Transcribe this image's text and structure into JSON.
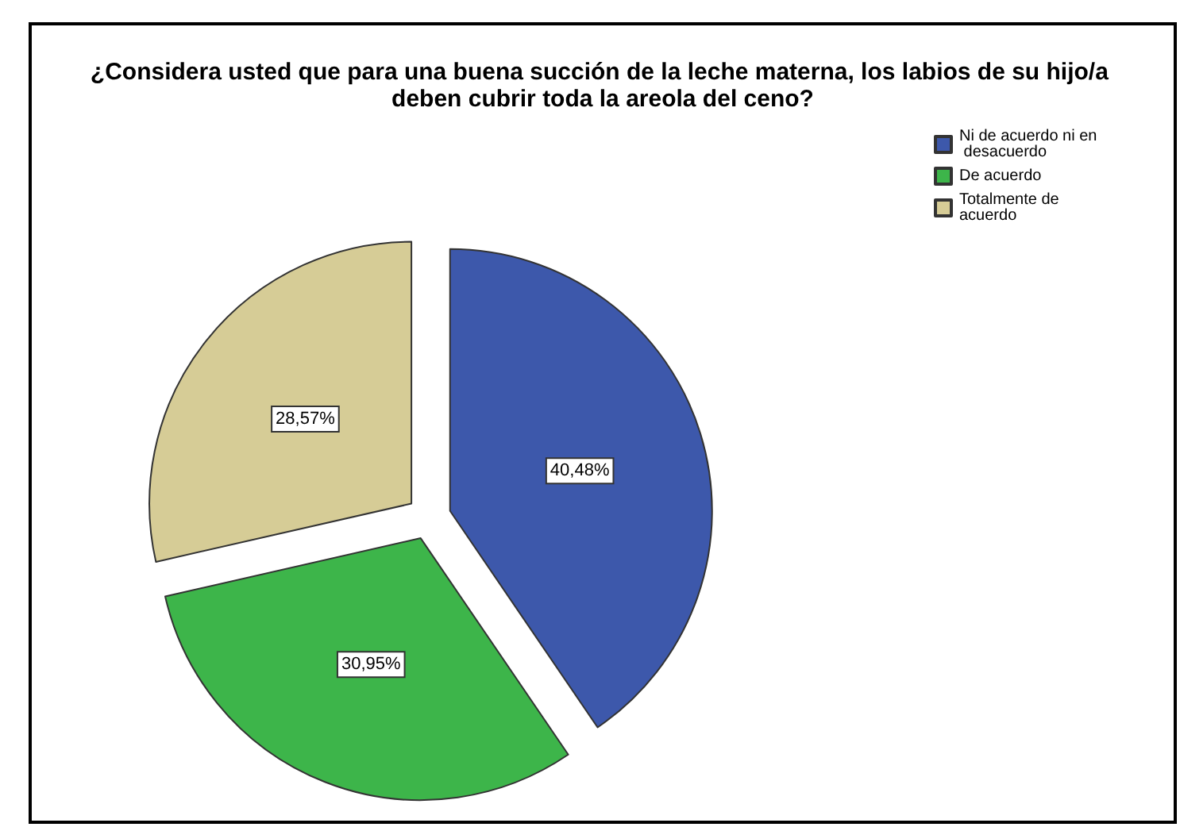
{
  "chart_data": {
    "type": "pie",
    "title": "¿Considera usted que para una buena succión de la leche materna, los labios de su hijo/a deben cubrir toda la areola del ceno?",
    "categories": [
      "Ni de acuerdo ni en desacuerdo",
      "De acuerdo",
      "Totalmente de acuerdo"
    ],
    "values": [
      40.48,
      30.95,
      28.57
    ],
    "value_labels": [
      "40,48%",
      "30,95%",
      "28,57%"
    ],
    "colors": [
      "#3d58ab",
      "#3db54a",
      "#d6cc96"
    ],
    "legend": "top right"
  }
}
